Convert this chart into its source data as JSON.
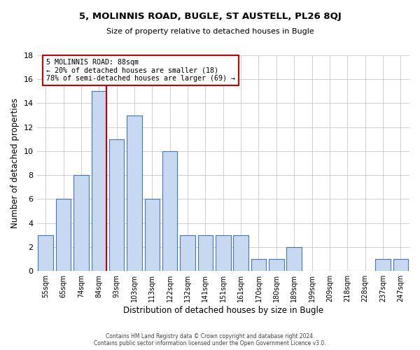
{
  "title_main": "5, MOLINNIS ROAD, BUGLE, ST AUSTELL, PL26 8QJ",
  "title_sub": "Size of property relative to detached houses in Bugle",
  "xlabel": "Distribution of detached houses by size in Bugle",
  "ylabel": "Number of detached properties",
  "bin_labels": [
    "55sqm",
    "65sqm",
    "74sqm",
    "84sqm",
    "93sqm",
    "103sqm",
    "113sqm",
    "122sqm",
    "132sqm",
    "141sqm",
    "151sqm",
    "161sqm",
    "170sqm",
    "180sqm",
    "189sqm",
    "199sqm",
    "209sqm",
    "218sqm",
    "228sqm",
    "237sqm",
    "247sqm"
  ],
  "bar_values": [
    3,
    6,
    8,
    15,
    11,
    13,
    6,
    10,
    3,
    3,
    3,
    3,
    1,
    1,
    2,
    0,
    0,
    0,
    0,
    1,
    1
  ],
  "bar_color": "#c6d9f1",
  "bar_edge_color": "#4472c4",
  "property_line_color": "#cc0000",
  "annotation_text": "5 MOLINNIS ROAD: 88sqm\n← 20% of detached houses are smaller (18)\n78% of semi-detached houses are larger (69) →",
  "annotation_box_color": "#ffffff",
  "annotation_box_edge": "#cc0000",
  "ylim": [
    0,
    18
  ],
  "yticks": [
    0,
    2,
    4,
    6,
    8,
    10,
    12,
    14,
    16,
    18
  ],
  "footer_line1": "Contains HM Land Registry data © Crown copyright and database right 2024.",
  "footer_line2": "Contains public sector information licensed under the Open Government Licence v3.0.",
  "bg_color": "#ffffff",
  "grid_color": "#d0d0d0"
}
